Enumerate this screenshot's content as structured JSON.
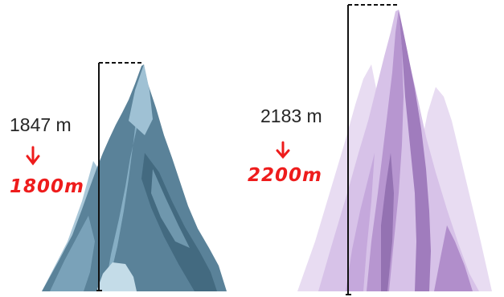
{
  "colors": {
    "blue_dark": "#4f7890",
    "blue_mid": "#7ea5bd",
    "blue_light": "#b2cfde",
    "purple_dark": "#a884c4",
    "purple_mid": "#c9aedd",
    "purple_light": "#e6d9f0",
    "annotation_red": "#ee1c1c",
    "measure_line": "#111111"
  },
  "mountains": [
    {
      "name": "blue mountain",
      "height_label": "1847 m",
      "rounded_label": "1800m"
    },
    {
      "name": "purple mountain",
      "height_label": "2183 m",
      "rounded_label": "2200m"
    }
  ]
}
